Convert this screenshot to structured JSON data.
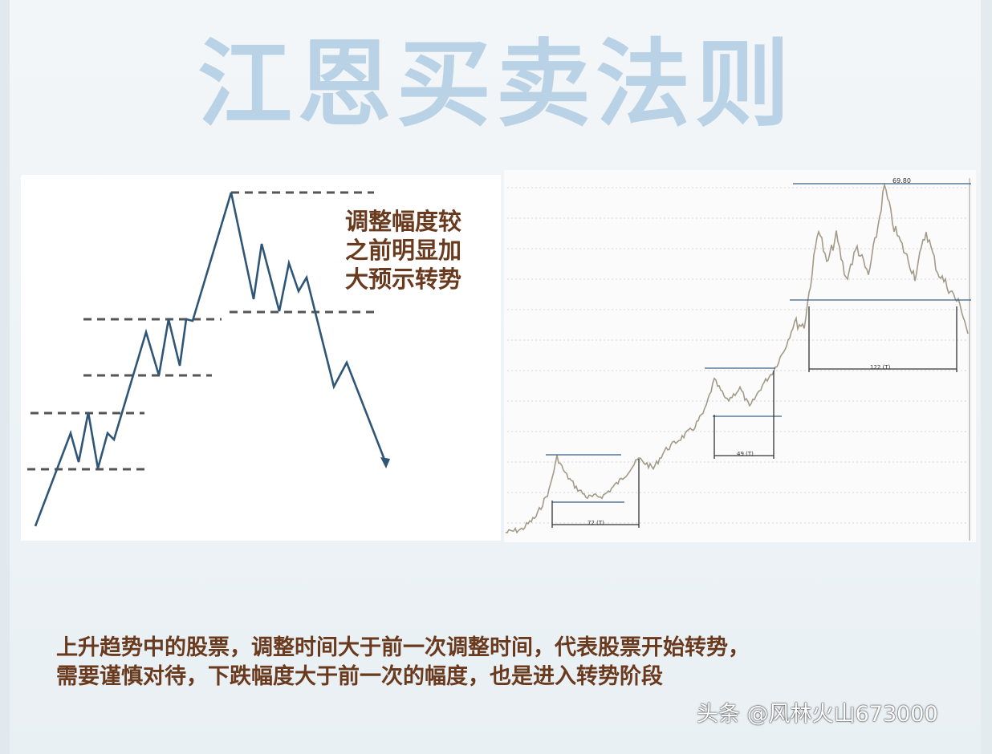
{
  "title": "江恩买卖法则",
  "left_diagram": {
    "annotation_lines": [
      "调整幅度较",
      "之前明显加",
      "大预示转势"
    ]
  },
  "right_chart": {
    "peak_label": "69.80",
    "interval_labels": [
      "72 (T)",
      "49 (T)",
      "122 (T)"
    ]
  },
  "caption_lines": [
    "上升趋势中的股票，调整时间大于前一次调整时间，代表股票开始转势，",
    "需要谨慎对待，下跌幅度大于前一次的幅度，也是进入转势阶段"
  ],
  "watermark": "头条 @风林火山673000",
  "colors": {
    "title": "#b9d2e6",
    "line": "#2f5577",
    "text": "#6a3a1e",
    "price": "#a39a88"
  }
}
